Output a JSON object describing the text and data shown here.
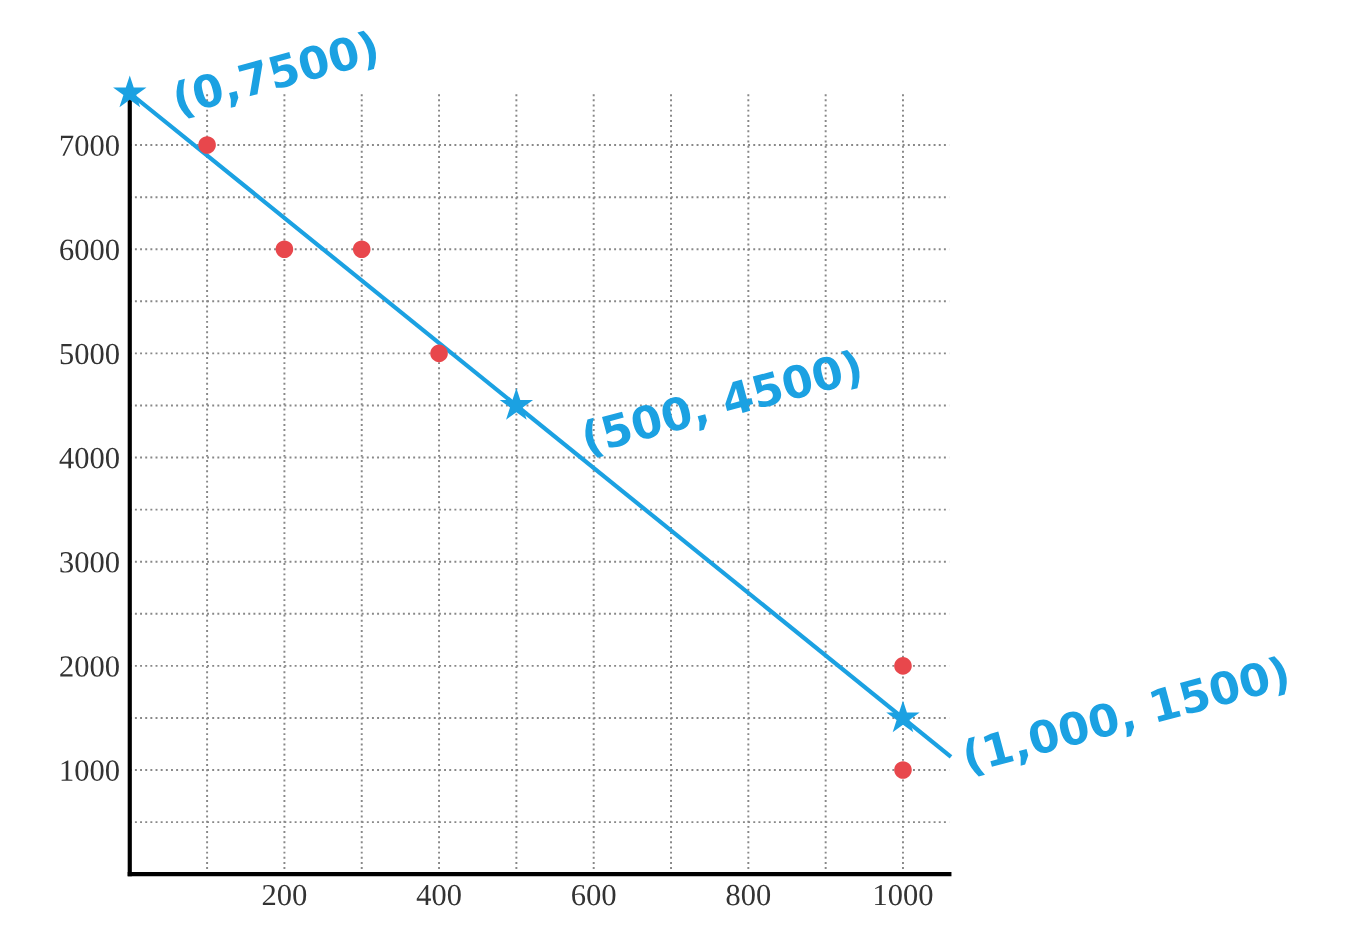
{
  "chart_data": {
    "type": "scatter",
    "xlim": [
      0,
      1060
    ],
    "ylim": [
      0,
      7500
    ],
    "xticks": [
      {
        "value": 100,
        "label": null
      },
      200,
      {
        "value": 300,
        "label": null
      },
      400,
      {
        "value": 500,
        "label": null
      },
      600,
      {
        "value": 700,
        "label": null
      },
      800,
      {
        "value": 900,
        "label": null
      },
      1000
    ],
    "yticks": [
      {
        "value": 500,
        "label": null
      },
      1000,
      {
        "value": 1500,
        "label": null
      },
      2000,
      {
        "value": 2500,
        "label": null
      },
      3000,
      {
        "value": 3500,
        "label": null
      },
      4000,
      {
        "value": 4500,
        "label": null
      },
      5000,
      {
        "value": 5500,
        "label": null
      },
      6000,
      {
        "value": 6500,
        "label": null
      },
      7000
    ],
    "grid": true,
    "series": [
      {
        "color": "#e8474c",
        "marker": "circle",
        "x": [
          100,
          200,
          300,
          400,
          1000,
          1000
        ],
        "values": [
          7000,
          6000,
          6000,
          5000,
          2000,
          1000
        ]
      },
      {
        "type": "line",
        "color": "#1ba1e2",
        "marker": "none",
        "x": [
          0,
          1060
        ],
        "values": [
          7500,
          1140
        ]
      },
      {
        "color": "#1ba1e2",
        "marker": "star",
        "x": [
          0,
          500,
          1000
        ],
        "values": [
          7500,
          4500,
          1500
        ]
      }
    ],
    "annotations": [
      {
        "text": "(0,7500)",
        "x": 0,
        "y": 7500
      },
      {
        "text": "(500, 4500)",
        "x": 500,
        "y": 4500
      },
      {
        "text": "(1,000, 1500)",
        "x": 1000,
        "y": 1500
      }
    ]
  }
}
